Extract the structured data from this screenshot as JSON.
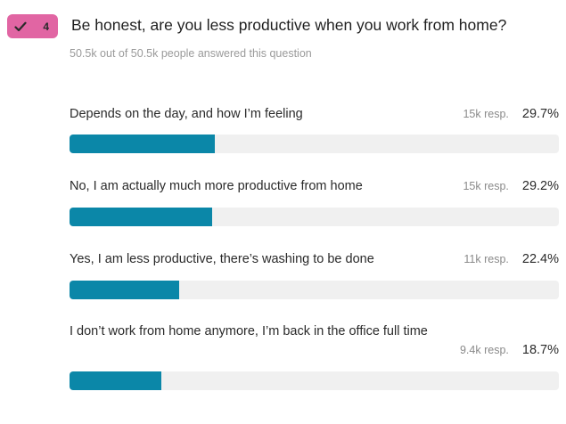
{
  "poll": {
    "badge": {
      "count": "4",
      "icon": "checkmark-icon",
      "color": "#e165a3"
    },
    "question": "Be honest, are you less productive when you work from home?",
    "answered_text": "50.5k out of 50.5k people answered this question",
    "bar_color": "#0b87a8",
    "track_color": "#f0f0f0",
    "options": [
      {
        "label": "Depends on the day, and how I’m feeling",
        "responses": "15k resp.",
        "percent_text": "29.7%",
        "percent": 29.7
      },
      {
        "label": "No, I am actually much more productive from home",
        "responses": "15k resp.",
        "percent_text": "29.2%",
        "percent": 29.2
      },
      {
        "label": "Yes, I am less productive, there’s washing to be done",
        "responses": "11k resp.",
        "percent_text": "22.4%",
        "percent": 22.4
      },
      {
        "label": "I don’t work from home anymore, I’m back in the office full time",
        "responses": "9.4k resp.",
        "percent_text": "18.7%",
        "percent": 18.7
      }
    ]
  }
}
